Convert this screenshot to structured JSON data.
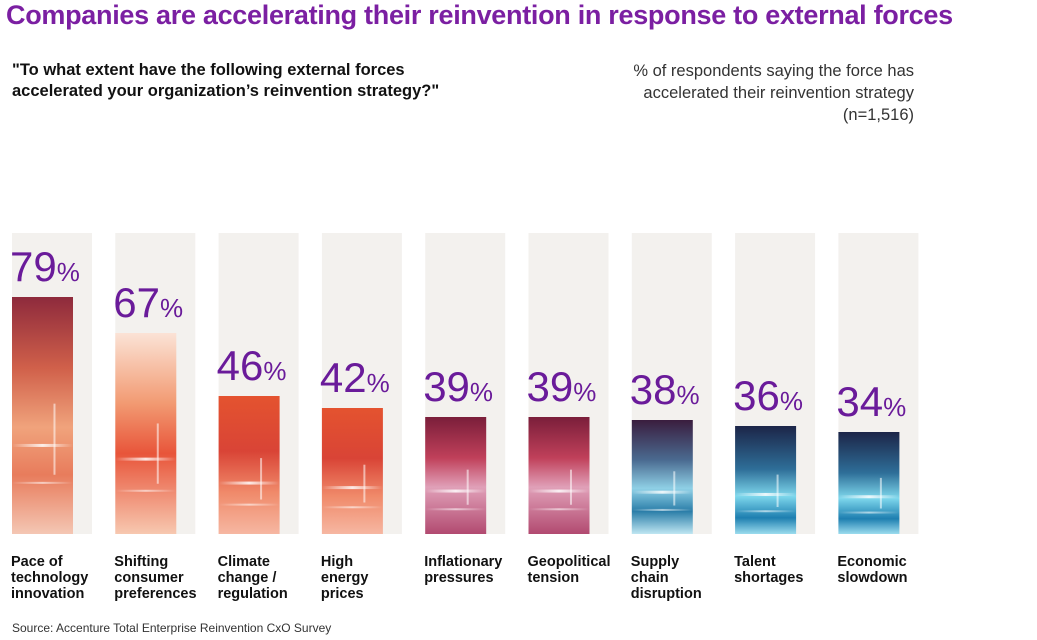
{
  "title": "Companies are accelerating their reinvention in response to external forces",
  "question": "\"To what extent have the following external forces accelerated your organization’s reinvention strategy?\"",
  "note": "% of respondents saying the force has accelerated their reinvention strategy (n=1,516)",
  "source": "Source: Accenture Total Enterprise Reinvention CxO Survey",
  "colors": {
    "title": "#7b1fa2",
    "value_text": "#6a1b9a",
    "track": "#f3f1ee"
  },
  "chart_data": {
    "type": "bar",
    "title": "Companies are accelerating their reinvention in response to external forces",
    "xlabel": "",
    "ylabel": "% of respondents saying the force has accelerated their reinvention strategy (n=1,516)",
    "ylim": [
      0,
      100
    ],
    "grid": false,
    "unit": "%",
    "categories": [
      "Pace of technology innovation",
      "Shifting consumer preferences",
      "Climate change / regulation",
      "High energy prices",
      "Inflationary pressures",
      "Geopolitical tension",
      "Supply chain disruption",
      "Talent shortages",
      "Economic slowdown"
    ],
    "category_lines": [
      [
        "Pace of",
        "technology",
        "innovation"
      ],
      [
        "Shifting",
        "consumer",
        "preferences"
      ],
      [
        "Climate",
        "change /",
        "regulation"
      ],
      [
        "High",
        "energy",
        "prices"
      ],
      [
        "Inflationary",
        "pressures"
      ],
      [
        "Geopolitical",
        "tension"
      ],
      [
        "Supply",
        "chain",
        "disruption"
      ],
      [
        "Talent",
        "shortages"
      ],
      [
        "Economic",
        "slowdown"
      ]
    ],
    "values": [
      79,
      67,
      46,
      42,
      39,
      39,
      38,
      36,
      34
    ]
  }
}
